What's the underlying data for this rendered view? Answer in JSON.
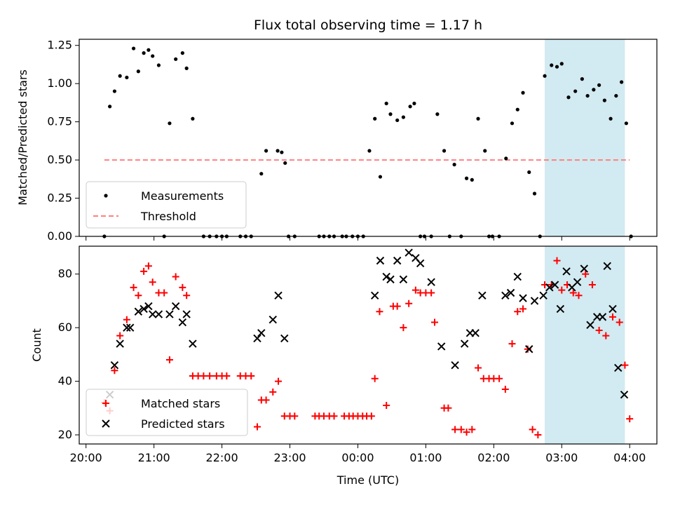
{
  "chart_data": {
    "title": "Flux total observing time = 1.17 h",
    "xlabel": "Time (UTC)",
    "x_ticks": [
      "20:00",
      "21:00",
      "22:00",
      "23:00",
      "00:00",
      "01:00",
      "02:00",
      "03:00",
      "04:00"
    ],
    "x_range_hours": [
      19.9,
      28.4
    ],
    "highlight_span_hours": [
      26.75,
      27.93
    ],
    "colors": {
      "measure": "#000000",
      "threshold": "#ff8080",
      "matched": "#ff0000",
      "predicted": "#000000",
      "span": "#add8e6"
    },
    "panels": [
      {
        "type": "scatter",
        "ylabel": "Matched/Predicted stars",
        "ylim": [
          0,
          1.29
        ],
        "yticks": [
          "0.00",
          "0.25",
          "0.50",
          "0.75",
          "1.00",
          "1.25"
        ],
        "ytick_values": [
          0,
          0.25,
          0.5,
          0.75,
          1.0,
          1.25
        ],
        "legend": {
          "placement": "lower-left",
          "entries": [
            "Measurements",
            "Threshold"
          ]
        },
        "threshold": {
          "y": 0.5,
          "x": [
            20.27,
            28.0
          ]
        },
        "series": [
          {
            "name": "Measurements",
            "x": [
              20.27,
              20.35,
              20.42,
              20.5,
              20.6,
              20.7,
              20.77,
              20.85,
              20.92,
              20.98,
              21.07,
              21.15,
              21.23,
              21.32,
              21.42,
              21.48,
              21.57,
              21.73,
              21.82,
              21.92,
              22.0,
              22.07,
              22.27,
              22.35,
              22.43,
              22.58,
              22.65,
              22.82,
              22.88,
              22.93,
              22.98,
              23.07,
              23.43,
              23.5,
              23.58,
              23.65,
              23.77,
              23.83,
              23.92,
              24.0,
              24.08,
              24.17,
              24.25,
              24.33,
              24.42,
              24.48,
              24.58,
              24.67,
              24.77,
              24.83,
              24.92,
              24.98,
              25.08,
              25.17,
              25.27,
              25.35,
              25.42,
              25.52,
              25.6,
              25.68,
              25.77,
              25.87,
              25.93,
              25.98,
              26.08,
              26.18,
              26.27,
              26.35,
              26.43,
              26.52,
              26.6,
              26.68,
              26.75,
              26.85,
              26.93,
              27.0,
              27.1,
              27.2,
              27.3,
              27.38,
              27.47,
              27.55,
              27.63,
              27.72,
              27.8,
              27.88,
              27.95,
              28.02
            ],
            "y": [
              0.0,
              0.85,
              0.95,
              1.05,
              1.04,
              1.23,
              1.08,
              1.2,
              1.22,
              1.18,
              1.12,
              0.0,
              0.74,
              1.16,
              1.2,
              1.1,
              0.77,
              0.0,
              0.0,
              0.0,
              0.0,
              0.0,
              0.0,
              0.0,
              0.0,
              0.41,
              0.56,
              0.56,
              0.55,
              0.48,
              0.0,
              0.0,
              0.0,
              0.0,
              0.0,
              0.0,
              0.0,
              0.0,
              0.0,
              0.0,
              0.0,
              0.56,
              0.77,
              0.39,
              0.87,
              0.8,
              0.76,
              0.78,
              0.85,
              0.87,
              0.0,
              0.0,
              0.0,
              0.8,
              0.56,
              0.0,
              0.47,
              0.0,
              0.38,
              0.37,
              0.77,
              0.56,
              0.0,
              0.0,
              0.0,
              0.51,
              0.74,
              0.83,
              0.94,
              0.42,
              0.28,
              0.0,
              1.05,
              1.12,
              1.11,
              1.13,
              0.91,
              0.95,
              1.03,
              0.92,
              0.96,
              0.99,
              0.89,
              0.77,
              0.92,
              1.01,
              0.74,
              0.0
            ]
          }
        ]
      },
      {
        "type": "scatter",
        "ylabel": "Count",
        "ylim": [
          16.6,
          90.4
        ],
        "yticks": [
          "20",
          "40",
          "60",
          "80"
        ],
        "ytick_values": [
          20,
          40,
          60,
          80
        ],
        "legend": {
          "placement": "lower-left",
          "entries": [
            "Matched stars",
            "Predicted stars"
          ]
        },
        "series": [
          {
            "name": "Matched stars",
            "x": [
              20.27,
              20.35,
              20.42,
              20.5,
              20.6,
              20.7,
              20.77,
              20.85,
              20.92,
              20.98,
              21.07,
              21.15,
              21.23,
              21.32,
              21.42,
              21.48,
              21.57,
              21.65,
              21.73,
              21.82,
              21.92,
              22.0,
              22.07,
              22.27,
              22.35,
              22.43,
              22.52,
              22.58,
              22.65,
              22.75,
              22.83,
              22.92,
              23.0,
              23.07,
              23.37,
              23.43,
              23.5,
              23.58,
              23.65,
              23.8,
              23.87,
              23.93,
              24.0,
              24.07,
              24.13,
              24.2,
              24.25,
              24.32,
              24.42,
              24.52,
              24.58,
              24.67,
              24.75,
              24.85,
              24.92,
              25.0,
              25.08,
              25.13,
              25.27,
              25.33,
              25.43,
              25.52,
              25.6,
              25.68,
              25.77,
              25.85,
              25.93,
              26.0,
              26.08,
              26.17,
              26.27,
              26.35,
              26.43,
              26.5,
              26.57,
              26.65,
              26.75,
              26.85,
              26.93,
              27.0,
              27.08,
              27.17,
              27.25,
              27.35,
              27.45,
              27.55,
              27.65,
              27.75,
              27.85,
              27.93,
              28.0
            ],
            "y": [
              32,
              29,
              44,
              57,
              63,
              75,
              72,
              81,
              83,
              77,
              73,
              73,
              48,
              79,
              75,
              72,
              42,
              42,
              42,
              42,
              42,
              42,
              42,
              42,
              42,
              42,
              23,
              33,
              33,
              36,
              40,
              27,
              27,
              27,
              27,
              27,
              27,
              27,
              27,
              27,
              27,
              27,
              27,
              27,
              27,
              27,
              41,
              66,
              31,
              68,
              68,
              60,
              69,
              74,
              73,
              73,
              73,
              62,
              30,
              30,
              22,
              22,
              21,
              22,
              45,
              41,
              41,
              41,
              41,
              37,
              54,
              66,
              67,
              52,
              22,
              20,
              76,
              76,
              85,
              74,
              76,
              73,
              72,
              80,
              76,
              59,
              57,
              64,
              62,
              46,
              26
            ]
          },
          {
            "name": "Predicted stars",
            "x": [
              20.35,
              20.42,
              20.5,
              20.6,
              20.65,
              20.77,
              20.85,
              20.92,
              20.98,
              21.07,
              21.23,
              21.32,
              21.42,
              21.48,
              21.57,
              22.52,
              22.58,
              22.75,
              22.83,
              22.92,
              24.25,
              24.33,
              24.42,
              24.48,
              24.58,
              24.67,
              24.75,
              24.85,
              24.92,
              25.08,
              25.23,
              25.43,
              25.57,
              25.65,
              25.73,
              25.83,
              26.17,
              26.25,
              26.35,
              26.43,
              26.52,
              26.6,
              26.73,
              26.82,
              26.9,
              26.98,
              27.07,
              27.15,
              27.23,
              27.33,
              27.42,
              27.52,
              27.6,
              27.67,
              27.75,
              27.83,
              27.92
            ],
            "y": [
              35,
              46,
              54,
              60,
              60,
              66,
              67,
              68,
              65,
              65,
              65,
              68,
              62,
              65,
              54,
              56,
              58,
              63,
              72,
              56,
              72,
              85,
              79,
              78,
              85,
              78,
              88,
              86,
              84,
              77,
              53,
              46,
              54,
              58,
              58,
              72,
              72,
              73,
              79,
              71,
              52,
              70,
              72,
              75,
              76,
              67,
              81,
              75,
              77,
              82,
              61,
              64,
              64,
              83,
              67,
              45,
              35
            ]
          }
        ]
      }
    ]
  }
}
